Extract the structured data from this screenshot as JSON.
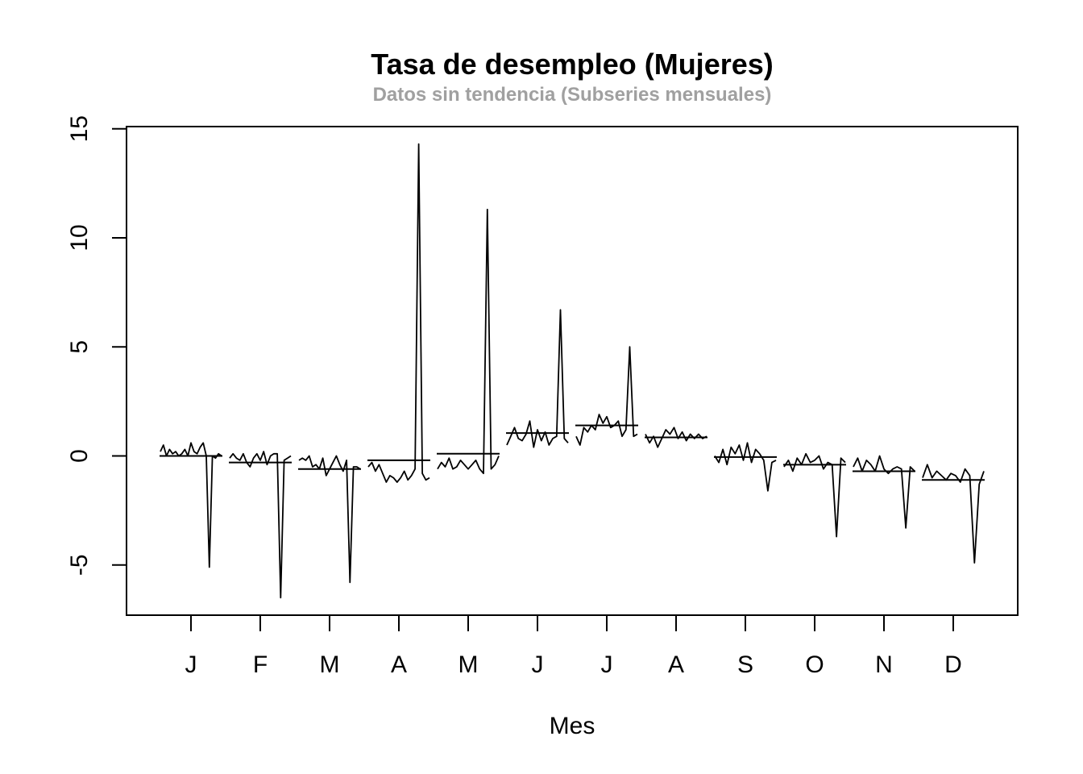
{
  "chart_data": {
    "type": "line",
    "title": "Tasa de desempleo (Mujeres)",
    "subtitle": "Datos sin tendencia (Subseries mensuales)",
    "xlabel": "Mes",
    "ylabel": "",
    "ylim": [
      -7.3,
      15.1
    ],
    "yticks": [
      -5,
      0,
      5,
      10,
      15
    ],
    "categories": [
      "J",
      "F",
      "M",
      "A",
      "M",
      "J",
      "J",
      "A",
      "S",
      "O",
      "N",
      "D"
    ],
    "grid": false,
    "legend": "none",
    "line_color": "#000000",
    "subseries": [
      {
        "mean": 0.0,
        "values": [
          0.2,
          0.5,
          0.0,
          0.3,
          0.1,
          0.2,
          0.0,
          0.1,
          0.3,
          0.0,
          0.6,
          0.2,
          0.1,
          0.4,
          0.6,
          0.0,
          -5.1,
          0.0,
          -0.1,
          0.1,
          0.0
        ]
      },
      {
        "mean": -0.3,
        "values": [
          -0.1,
          0.1,
          -0.1,
          -0.2,
          0.1,
          -0.3,
          -0.5,
          -0.1,
          0.1,
          -0.2,
          0.2,
          -0.4,
          0.0,
          0.1,
          0.1,
          -6.5,
          -0.2,
          -0.1,
          0.0
        ]
      },
      {
        "mean": -0.6,
        "values": [
          -0.2,
          -0.1,
          -0.2,
          0.0,
          -0.5,
          -0.4,
          -0.6,
          -0.1,
          -0.9,
          -0.6,
          -0.3,
          0.0,
          -0.4,
          -0.7,
          -0.2,
          -5.8,
          -0.5,
          -0.5,
          -0.6
        ]
      },
      {
        "mean": -0.2,
        "values": [
          -0.5,
          -0.3,
          -0.7,
          -0.4,
          -0.8,
          -1.2,
          -0.9,
          -1.0,
          -1.2,
          -1.0,
          -0.7,
          -1.1,
          -0.9,
          -0.6,
          14.3,
          -0.8,
          -1.1,
          -1.0
        ]
      },
      {
        "mean": 0.1,
        "values": [
          -0.6,
          -0.3,
          -0.5,
          -0.1,
          -0.6,
          -0.5,
          -0.2,
          -0.4,
          -0.6,
          -0.4,
          -0.2,
          -0.6,
          -0.8,
          11.3,
          -0.6,
          -0.4,
          0.0
        ]
      },
      {
        "mean": 1.05,
        "values": [
          0.5,
          0.9,
          1.3,
          0.8,
          0.7,
          1.0,
          1.6,
          0.4,
          1.2,
          0.7,
          1.1,
          0.5,
          0.8,
          0.9,
          6.7,
          0.8,
          0.6
        ]
      },
      {
        "mean": 1.4,
        "values": [
          0.9,
          0.5,
          1.3,
          1.1,
          1.4,
          1.2,
          1.9,
          1.5,
          1.8,
          1.3,
          1.4,
          1.6,
          0.9,
          1.2,
          5.0,
          0.9,
          1.0
        ]
      },
      {
        "mean": 0.85,
        "values": [
          1.0,
          0.6,
          0.9,
          0.4,
          0.8,
          1.2,
          1.0,
          1.3,
          0.8,
          1.1,
          0.7,
          1.0,
          0.8,
          1.0,
          0.8,
          0.9
        ]
      },
      {
        "mean": -0.05,
        "values": [
          0.0,
          -0.3,
          0.3,
          -0.4,
          0.4,
          0.1,
          0.5,
          -0.2,
          0.6,
          -0.3,
          0.3,
          0.1,
          -0.2,
          -1.6,
          -0.3,
          -0.2
        ]
      },
      {
        "mean": -0.4,
        "values": [
          -0.5,
          -0.2,
          -0.7,
          -0.1,
          -0.4,
          0.1,
          -0.3,
          -0.2,
          0.0,
          -0.6,
          -0.3,
          -0.4,
          -3.7,
          -0.1,
          -0.3
        ]
      },
      {
        "mean": -0.7,
        "values": [
          -0.5,
          -0.1,
          -0.7,
          -0.2,
          -0.4,
          -0.7,
          0.0,
          -0.6,
          -0.8,
          -0.6,
          -0.5,
          -0.6,
          -3.3,
          -0.5,
          -0.7
        ]
      },
      {
        "mean": -1.1,
        "values": [
          -1.0,
          -0.4,
          -1.0,
          -0.7,
          -0.9,
          -1.1,
          -0.8,
          -0.9,
          -1.2,
          -0.6,
          -0.9,
          -4.9,
          -1.3,
          -0.7
        ]
      }
    ]
  }
}
